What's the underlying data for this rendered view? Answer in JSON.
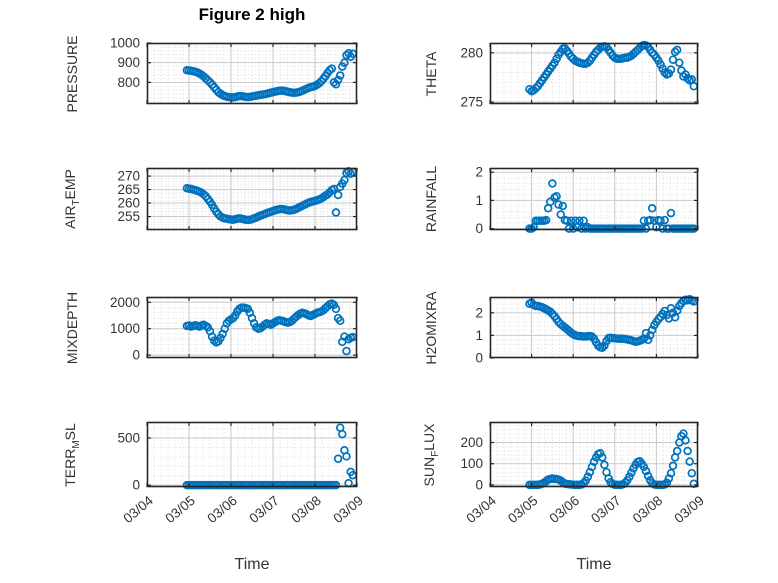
{
  "title": "Figure 2 high",
  "colors": {
    "marker": "#0072BD",
    "axis": "#262626",
    "major_grid": "#c9c9c9",
    "minor_grid": "#d9d9d9",
    "text": "#333333"
  },
  "chart_data": {
    "type": "scatter",
    "marker": "open-circle",
    "grid": "major solid + minor dotted",
    "x_axis": {
      "label": "Time",
      "lim": [
        4,
        9
      ],
      "tick_values": [
        4,
        5,
        6,
        7,
        8,
        9
      ],
      "tick_labels": [
        "03/04",
        "03/05",
        "03/06",
        "03/07",
        "03/08",
        "03/09"
      ],
      "minor_per_interval": 6
    },
    "sampling": {
      "x_start": 4.95,
      "x_step": 0.05,
      "x_unit": "day of March"
    },
    "subplots": [
      {
        "key": "pressure",
        "label_pre": "PRESSURE",
        "label_sub": "",
        "label_post": "",
        "row": 0,
        "col": 0,
        "ylim": [
          690,
          1000
        ],
        "ytick_values": [
          800,
          900,
          1000
        ],
        "ytick_labels": [
          "800",
          "900",
          "1000"
        ],
        "yminor_step": 20,
        "values": [
          862,
          860,
          858,
          856,
          854,
          850,
          845,
          838,
          830,
          820,
          810,
          800,
          788,
          775,
          762,
          750,
          742,
          735,
          730,
          727,
          725,
          724,
          723,
          725,
          728,
          730,
          730,
          728,
          726,
          725,
          726,
          728,
          730,
          732,
          734,
          736,
          738,
          740,
          742,
          745,
          748,
          750,
          753,
          755,
          757,
          758,
          757,
          755,
          752,
          750,
          748,
          747,
          748,
          750,
          753,
          757,
          762,
          768,
          772,
          776,
          778,
          782,
          788,
          795,
          805,
          818,
          832,
          848,
          862,
          870,
          800,
          790,
          812,
          835,
          880,
          900,
          938,
          948,
          930,
          945
        ]
      },
      {
        "key": "theta",
        "label_pre": "THETA",
        "label_sub": "",
        "label_post": "",
        "row": 0,
        "col": 1,
        "ylim": [
          274.8,
          281
        ],
        "ytick_values": [
          275,
          280
        ],
        "ytick_labels": [
          "275",
          "280"
        ],
        "yminor_step": 1,
        "values": [
          276.3,
          276.1,
          276.2,
          276.4,
          276.6,
          276.9,
          277.2,
          277.5,
          277.8,
          278.1,
          278.4,
          278.7,
          279.0,
          279.4,
          279.8,
          280.1,
          280.4,
          280.45,
          280.2,
          279.9,
          279.6,
          279.4,
          279.2,
          279.1,
          279.0,
          278.95,
          278.9,
          278.9,
          279.0,
          279.2,
          279.5,
          279.8,
          280.1,
          280.3,
          280.5,
          280.6,
          280.65,
          280.6,
          280.3,
          280.0,
          279.7,
          279.5,
          279.4,
          279.4,
          279.4,
          279.45,
          279.5,
          279.5,
          279.6,
          279.7,
          279.9,
          280.1,
          280.3,
          280.5,
          280.7,
          280.8,
          280.75,
          280.6,
          280.3,
          280.0,
          279.8,
          279.5,
          279.2,
          278.8,
          278.4,
          278.0,
          277.8,
          277.9,
          278.3,
          279.3,
          280.1,
          280.3,
          279.0,
          278.2,
          277.6,
          277.8,
          277.4,
          277.2,
          277.3,
          276.6
        ]
      },
      {
        "key": "airtemp",
        "label_pre": "AIR",
        "label_sub": "T",
        "label_post": "EMP",
        "row": 1,
        "col": 0,
        "ylim": [
          250,
          273
        ],
        "ytick_values": [
          255,
          260,
          265,
          270
        ],
        "ytick_labels": [
          "255",
          "260",
          "265",
          "270"
        ],
        "yminor_step": 1,
        "values": [
          265.5,
          265.3,
          265.2,
          265.0,
          264.8,
          264.5,
          264.2,
          263.8,
          263.2,
          262.5,
          261.5,
          260.5,
          259.3,
          258.0,
          256.8,
          255.8,
          255.0,
          254.6,
          254.3,
          254.2,
          254.0,
          253.9,
          253.8,
          254.0,
          254.2,
          254.3,
          254.2,
          254.0,
          253.8,
          253.7,
          253.8,
          254.0,
          254.3,
          254.6,
          255.0,
          255.3,
          255.6,
          255.9,
          256.2,
          256.5,
          256.8,
          257.0,
          257.3,
          257.5,
          257.7,
          257.8,
          257.7,
          257.5,
          257.3,
          257.2,
          257.3,
          257.5,
          257.8,
          258.2,
          258.6,
          259.0,
          259.4,
          259.8,
          260.1,
          260.4,
          260.6,
          260.8,
          261.0,
          261.3,
          261.7,
          262.2,
          262.8,
          263.2,
          264.0,
          264.8,
          265.2,
          256.5,
          263.0,
          266.0,
          267.2,
          268.5,
          271.2,
          271.8,
          270.9,
          271.5
        ]
      },
      {
        "key": "rainfall",
        "label_pre": "RAINFALL",
        "label_sub": "",
        "label_post": "",
        "row": 1,
        "col": 1,
        "ylim": [
          -0.05,
          2.15
        ],
        "ytick_values": [
          0,
          1,
          2
        ],
        "ytick_labels": [
          "0",
          "1",
          "2"
        ],
        "yminor_step": 0.2,
        "values": [
          0,
          0,
          0.05,
          0.28,
          0.28,
          0.28,
          0.28,
          0.28,
          0.3,
          0.72,
          0.95,
          1.6,
          1.1,
          1.15,
          0.85,
          0.5,
          0.8,
          0.3,
          0.28,
          0,
          0.28,
          0,
          0.28,
          0.05,
          0.28,
          0,
          0.28,
          0,
          0.05,
          0,
          0,
          0,
          0,
          0,
          0,
          0,
          0,
          0,
          0,
          0,
          0,
          0,
          0,
          0,
          0,
          0,
          0,
          0,
          0,
          0,
          0,
          0,
          0,
          0,
          0,
          0.28,
          0,
          0.28,
          0.3,
          0.72,
          0.28,
          0.05,
          0.3,
          0.28,
          0,
          0.3,
          0,
          0,
          0.55,
          0,
          0,
          0,
          0,
          0,
          0,
          0,
          0,
          0,
          0,
          0
        ]
      },
      {
        "key": "mixdepth",
        "label_pre": "MIXDEPTH",
        "label_sub": "",
        "label_post": "",
        "row": 2,
        "col": 0,
        "ylim": [
          -110,
          2200
        ],
        "ytick_values": [
          0,
          1000,
          2000
        ],
        "ytick_labels": [
          "0",
          "1000",
          "2000"
        ],
        "yminor_step": 200,
        "values": [
          1100,
          1120,
          1080,
          1100,
          1130,
          1100,
          1080,
          1120,
          1150,
          1100,
          1050,
          900,
          700,
          550,
          480,
          520,
          650,
          800,
          1000,
          1200,
          1300,
          1350,
          1400,
          1500,
          1650,
          1750,
          1800,
          1800,
          1780,
          1750,
          1600,
          1400,
          1200,
          1050,
          1000,
          1020,
          1080,
          1150,
          1200,
          1180,
          1150,
          1200,
          1250,
          1300,
          1320,
          1300,
          1280,
          1250,
          1230,
          1250,
          1300,
          1380,
          1450,
          1520,
          1570,
          1600,
          1580,
          1550,
          1500,
          1480,
          1520,
          1560,
          1600,
          1620,
          1650,
          1700,
          1780,
          1850,
          1920,
          1950,
          1900,
          1750,
          1400,
          1300,
          500,
          700,
          150,
          600,
          650,
          680
        ]
      },
      {
        "key": "h2omixra",
        "label_pre": "H2OMIXRA",
        "label_sub": "",
        "label_post": "",
        "row": 2,
        "col": 1,
        "ylim": [
          0,
          2.7
        ],
        "ytick_values": [
          0,
          1,
          2
        ],
        "ytick_labels": [
          "0",
          "1",
          "2"
        ],
        "yminor_step": 0.2,
        "values": [
          2.4,
          2.45,
          2.35,
          2.3,
          2.3,
          2.28,
          2.25,
          2.2,
          2.15,
          2.1,
          2.05,
          1.95,
          1.85,
          1.72,
          1.6,
          1.5,
          1.42,
          1.35,
          1.28,
          1.2,
          1.12,
          1.05,
          1.0,
          0.98,
          0.97,
          0.96,
          0.95,
          0.95,
          0.96,
          0.97,
          0.95,
          0.85,
          0.7,
          0.55,
          0.48,
          0.45,
          0.55,
          0.75,
          0.88,
          0.9,
          0.88,
          0.87,
          0.86,
          0.86,
          0.85,
          0.85,
          0.84,
          0.82,
          0.8,
          0.78,
          0.75,
          0.72,
          0.73,
          0.76,
          0.8,
          0.86,
          1.1,
          0.8,
          1.0,
          1.25,
          1.45,
          1.6,
          1.72,
          1.82,
          1.95,
          2.08,
          1.9,
          1.75,
          2.2,
          2.0,
          1.8,
          2.1,
          2.3,
          2.42,
          2.52,
          2.58,
          2.55,
          2.6,
          2.55,
          2.5
        ]
      },
      {
        "key": "terrmsl",
        "label_pre": "TERR",
        "label_sub": "M",
        "label_post": "SL",
        "row": 3,
        "col": 0,
        "ylim": [
          -20,
          670
        ],
        "ytick_values": [
          0,
          500
        ],
        "ytick_labels": [
          "0",
          "500"
        ],
        "yminor_step": 100,
        "values": [
          0,
          0,
          0,
          0,
          0,
          0,
          0,
          0,
          0,
          0,
          0,
          0,
          0,
          0,
          0,
          0,
          0,
          0,
          0,
          0,
          0,
          0,
          0,
          0,
          0,
          0,
          0,
          0,
          0,
          0,
          0,
          0,
          0,
          0,
          0,
          0,
          0,
          0,
          0,
          0,
          0,
          0,
          0,
          0,
          0,
          0,
          0,
          0,
          0,
          0,
          0,
          0,
          0,
          0,
          0,
          0,
          0,
          0,
          0,
          0,
          0,
          0,
          0,
          0,
          0,
          0,
          0,
          0,
          0,
          0,
          0,
          0,
          280,
          610,
          540,
          370,
          305,
          20,
          140,
          105
        ]
      },
      {
        "key": "sunflux",
        "label_pre": "SUN",
        "label_sub": "F",
        "label_post": "LUX",
        "row": 3,
        "col": 1,
        "ylim": [
          -10,
          297
        ],
        "ytick_values": [
          0,
          100,
          200
        ],
        "ytick_labels": [
          "0",
          "100",
          "200"
        ],
        "yminor_step": 20,
        "values": [
          0,
          0,
          0,
          0,
          0,
          2,
          5,
          10,
          18,
          25,
          28,
          30,
          28,
          28,
          25,
          20,
          12,
          6,
          4,
          3,
          2,
          1,
          0,
          0,
          0,
          2,
          8,
          20,
          38,
          60,
          85,
          110,
          130,
          145,
          150,
          130,
          95,
          60,
          30,
          12,
          4,
          1,
          0,
          0,
          0,
          3,
          10,
          22,
          38,
          58,
          78,
          95,
          108,
          112,
          100,
          85,
          65,
          42,
          22,
          8,
          2,
          0,
          0,
          0,
          0,
          2,
          10,
          30,
          55,
          90,
          130,
          160,
          200,
          230,
          242,
          210,
          160,
          110,
          55,
          5
        ]
      }
    ]
  }
}
